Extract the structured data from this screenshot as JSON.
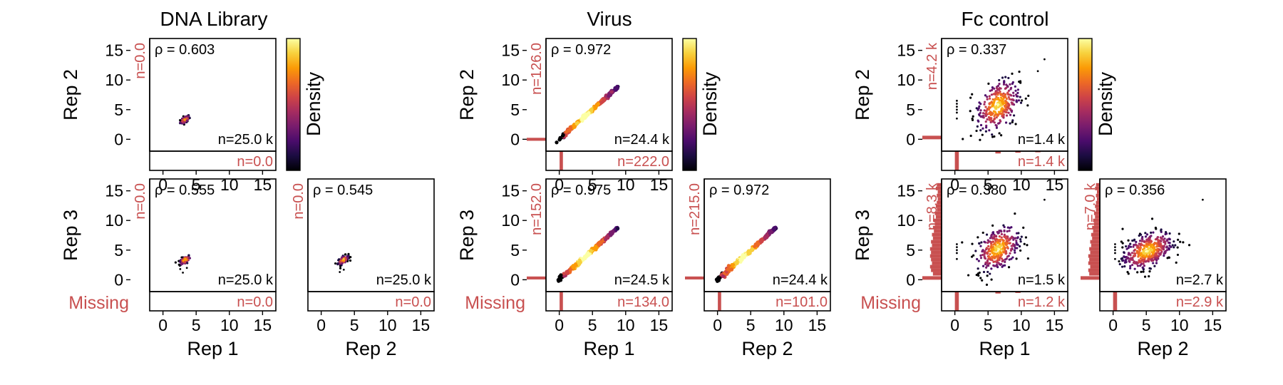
{
  "figure": {
    "colorbar_label": "Density",
    "colorbar_stops": [
      "#000004",
      "#1b0c41",
      "#4a0c6b",
      "#781c6d",
      "#a52c60",
      "#cf4446",
      "#ed6925",
      "#fb9b06",
      "#f7d13d",
      "#fcffa4"
    ],
    "missing_color": "#c85050",
    "missing_label": "Missing"
  },
  "chart_data": [
    {
      "type": "scatter",
      "group": "DNA Library",
      "title": "DNA Library",
      "xlabel": "",
      "ylabel": "Rep 2",
      "pair": [
        "Rep 1",
        "Rep 2"
      ],
      "xlim": [
        -2,
        17
      ],
      "ylim": [
        -2,
        17
      ],
      "xticks": [
        "0",
        "5",
        "10",
        "15"
      ],
      "yticks": [
        "0",
        "5",
        "10",
        "15"
      ],
      "rho_label": "ρ = 0.603",
      "rho": 0.603,
      "n_label": "n=25.0 k",
      "n_both": 25000,
      "miss_x_label": "n=0.0",
      "miss_x": 0,
      "miss_y_label": "n=0.0",
      "miss_y": 0,
      "cloud": {
        "cx": 3.3,
        "cy": 3.3,
        "sx": 0.35,
        "sy": 0.35,
        "corr": 0.6,
        "count": 90,
        "scatter_x": [],
        "scatter_y": []
      },
      "hist_x": [],
      "hist_y": []
    },
    {
      "type": "scatter",
      "group": "DNA Library",
      "xlabel": "Rep 1",
      "ylabel": "Rep 3",
      "pair": [
        "Rep 1",
        "Rep 3"
      ],
      "xlim": [
        -2,
        17
      ],
      "ylim": [
        -2,
        17
      ],
      "xticks": [
        "0",
        "5",
        "10",
        "15"
      ],
      "yticks": [
        "0",
        "5",
        "10",
        "15"
      ],
      "rho_label": "ρ = 0.555",
      "rho": 0.555,
      "n_label": "n=25.0 k",
      "n_both": 25000,
      "miss_x_label": "n=0.0",
      "miss_x": 0,
      "miss_y_label": "n=0.0",
      "miss_y": 0,
      "cloud": {
        "cx": 3.3,
        "cy": 3.3,
        "sx": 0.4,
        "sy": 0.4,
        "corr": 0.55,
        "count": 90,
        "scatter_x": [
          2.6,
          3.0,
          3.6
        ],
        "scatter_y": [
          1.8,
          1.2,
          2.0
        ]
      },
      "hist_x": [],
      "hist_y": []
    },
    {
      "type": "scatter",
      "group": "DNA Library",
      "xlabel": "Rep 2",
      "ylabel": "",
      "pair": [
        "Rep 2",
        "Rep 3"
      ],
      "xlim": [
        -2,
        17
      ],
      "ylim": [
        -2,
        17
      ],
      "xticks": [
        "0",
        "5",
        "10",
        "15"
      ],
      "yticks": [],
      "rho_label": "ρ = 0.545",
      "rho": 0.545,
      "n_label": "n=25.0 k",
      "n_both": 25000,
      "miss_x_label": "n=0.0",
      "miss_x": 0,
      "miss_y_label": "n=0.0",
      "miss_y": 0,
      "cloud": {
        "cx": 3.3,
        "cy": 3.3,
        "sx": 0.4,
        "sy": 0.4,
        "corr": 0.55,
        "count": 90,
        "scatter_x": [
          2.8,
          3.4
        ],
        "scatter_y": [
          1.3,
          1.7
        ]
      },
      "hist_x": [],
      "hist_y": []
    },
    {
      "type": "scatter",
      "group": "Virus",
      "title": "Virus",
      "xlabel": "",
      "ylabel": "Rep 2",
      "pair": [
        "Rep 1",
        "Rep 2"
      ],
      "xlim": [
        -2,
        17
      ],
      "ylim": [
        -2,
        17
      ],
      "xticks": [
        "0",
        "5",
        "10",
        "15"
      ],
      "yticks": [
        "0",
        "5",
        "10",
        "15"
      ],
      "rho_label": "ρ = 0.972",
      "rho": 0.972,
      "n_label": "n=24.4 k",
      "n_both": 24400,
      "miss_x_label": "n=222.0",
      "miss_x": 222,
      "miss_y_label": "n=126.0",
      "miss_y": 126,
      "cloud": {
        "diag": true,
        "x0": -0.2,
        "x1": 8.8,
        "count": 260,
        "scatter_x": [],
        "scatter_y": []
      },
      "hist_x": [
        {
          "x": 0.3,
          "w": 0.5,
          "h": 1.0
        }
      ],
      "hist_y": [
        {
          "y": 0.0,
          "w": 0.5,
          "h": 1.0
        }
      ]
    },
    {
      "type": "scatter",
      "group": "Virus",
      "xlabel": "Rep 1",
      "ylabel": "Rep 3",
      "pair": [
        "Rep 1",
        "Rep 3"
      ],
      "xlim": [
        -2,
        17
      ],
      "ylim": [
        -2,
        17
      ],
      "xticks": [
        "0",
        "5",
        "10",
        "15"
      ],
      "yticks": [
        "0",
        "5",
        "10",
        "15"
      ],
      "rho_label": "ρ = 0.975",
      "rho": 0.975,
      "n_label": "n=24.5 k",
      "n_both": 24500,
      "miss_x_label": "n=134.0",
      "miss_x": 134,
      "miss_y_label": "n=152.0",
      "miss_y": 152,
      "cloud": {
        "diag": true,
        "x0": -0.2,
        "x1": 8.8,
        "count": 260,
        "scatter_x": [],
        "scatter_y": []
      },
      "hist_x": [
        {
          "x": 0.3,
          "w": 0.5,
          "h": 1.0
        }
      ],
      "hist_y": [
        {
          "y": 0.3,
          "w": 0.5,
          "h": 1.0
        }
      ]
    },
    {
      "type": "scatter",
      "group": "Virus",
      "xlabel": "Rep 2",
      "ylabel": "",
      "pair": [
        "Rep 2",
        "Rep 3"
      ],
      "xlim": [
        -2,
        17
      ],
      "ylim": [
        -2,
        17
      ],
      "xticks": [
        "0",
        "5",
        "10",
        "15"
      ],
      "yticks": [],
      "rho_label": "ρ = 0.972",
      "rho": 0.972,
      "n_label": "n=24.4 k",
      "n_both": 24400,
      "miss_x_label": "n=101.0",
      "miss_x": 101,
      "miss_y_label": "n=215.0",
      "miss_y": 215,
      "cloud": {
        "diag": true,
        "x0": -0.2,
        "x1": 8.8,
        "count": 260,
        "scatter_x": [],
        "scatter_y": []
      },
      "hist_x": [
        {
          "x": 0.3,
          "w": 0.5,
          "h": 1.0
        }
      ],
      "hist_y": [
        {
          "y": 0.3,
          "w": 0.5,
          "h": 1.0
        }
      ]
    },
    {
      "type": "scatter",
      "group": "Fc control",
      "title": "Fc control",
      "xlabel": "",
      "ylabel": "Rep 2",
      "pair": [
        "Rep 1",
        "Rep 2"
      ],
      "xlim": [
        -2,
        17
      ],
      "ylim": [
        -2,
        17
      ],
      "xticks": [
        "0",
        "5",
        "10",
        "15"
      ],
      "yticks": [
        "0",
        "5",
        "10",
        "15"
      ],
      "rho_label": "ρ = 0.337",
      "rho": 0.337,
      "n_label": "n=1.4 k",
      "n_both": 1400,
      "miss_x_label": "n=1.4 k",
      "miss_x": 1400,
      "miss_y_label": "n=4.2 k",
      "miss_y": 4200,
      "cloud": {
        "cx": 6.5,
        "cy": 5.7,
        "sx": 1.6,
        "sy": 2.2,
        "corr": 0.35,
        "count": 320,
        "scatter_x": [
          0.3,
          0.3,
          0.3,
          0.3,
          0.3,
          0.3,
          13.5,
          12.5
        ],
        "scatter_y": [
          3.5,
          4.5,
          5.0,
          5.5,
          6.0,
          6.5,
          13.5,
          11.5
        ]
      },
      "hist_x": [
        {
          "x": 0.3,
          "w": 0.6,
          "h": 1.0
        },
        {
          "x": 6.5,
          "w": 0.8,
          "h": 0.12
        },
        {
          "x": 9.5,
          "w": 0.8,
          "h": 0.08
        },
        {
          "x": 12.5,
          "w": 0.8,
          "h": 0.06
        }
      ],
      "hist_y": [
        {
          "y": 0.3,
          "w": 0.6,
          "h": 1.0
        }
      ]
    },
    {
      "type": "scatter",
      "group": "Fc control",
      "xlabel": "Rep 1",
      "ylabel": "Rep 3",
      "pair": [
        "Rep 1",
        "Rep 3"
      ],
      "xlim": [
        -2,
        17
      ],
      "ylim": [
        -2,
        17
      ],
      "xticks": [
        "0",
        "5",
        "10",
        "15"
      ],
      "yticks": [
        "0",
        "5",
        "10",
        "15"
      ],
      "rho_label": "ρ = 0.380",
      "rho": 0.38,
      "n_label": "n=1.5 k",
      "n_both": 1500,
      "miss_x_label": "n=1.2 k",
      "miss_x": 1200,
      "miss_y_label": "n=8.3 k",
      "miss_y": 8300,
      "cloud": {
        "cx": 6.5,
        "cy": 5.2,
        "sx": 1.6,
        "sy": 1.9,
        "corr": 0.4,
        "count": 330,
        "scatter_x": [
          0.3,
          0.3,
          0.3,
          0.3,
          0.3,
          13.5
        ],
        "scatter_y": [
          3.5,
          4.5,
          5.0,
          5.5,
          6.0,
          13.5
        ]
      },
      "hist_x": [
        {
          "x": 0.3,
          "w": 0.6,
          "h": 1.0
        },
        {
          "x": 6.5,
          "w": 0.8,
          "h": 0.1
        },
        {
          "x": 9.5,
          "w": 0.8,
          "h": 0.07
        }
      ],
      "hist_y": [
        {
          "y": 0.3,
          "w": 0.6,
          "h": 1.0
        },
        {
          "y": 1.0,
          "w": 0.6,
          "h": 0.45
        },
        {
          "y": 1.6,
          "w": 0.6,
          "h": 0.55
        },
        {
          "y": 2.2,
          "w": 0.6,
          "h": 0.6
        },
        {
          "y": 2.8,
          "w": 0.6,
          "h": 0.5
        },
        {
          "y": 3.4,
          "w": 0.6,
          "h": 0.55
        },
        {
          "y": 4.0,
          "w": 0.6,
          "h": 0.6
        },
        {
          "y": 4.6,
          "w": 0.6,
          "h": 0.55
        },
        {
          "y": 5.2,
          "w": 0.6,
          "h": 0.6
        },
        {
          "y": 5.8,
          "w": 0.6,
          "h": 0.5
        },
        {
          "y": 6.4,
          "w": 0.6,
          "h": 0.55
        },
        {
          "y": 7.0,
          "w": 0.6,
          "h": 0.45
        },
        {
          "y": 7.6,
          "w": 0.6,
          "h": 0.5
        },
        {
          "y": 8.2,
          "w": 0.6,
          "h": 0.4
        },
        {
          "y": 8.8,
          "w": 0.6,
          "h": 0.45
        },
        {
          "y": 9.4,
          "w": 0.6,
          "h": 0.35
        },
        {
          "y": 10.0,
          "w": 0.6,
          "h": 0.4
        },
        {
          "y": 10.6,
          "w": 0.6,
          "h": 0.3
        },
        {
          "y": 11.2,
          "w": 0.6,
          "h": 0.35
        },
        {
          "y": 11.8,
          "w": 0.6,
          "h": 0.25
        },
        {
          "y": 12.4,
          "w": 0.6,
          "h": 0.3
        },
        {
          "y": 13.0,
          "w": 0.6,
          "h": 0.25
        },
        {
          "y": 13.6,
          "w": 0.6,
          "h": 0.2
        },
        {
          "y": 14.2,
          "w": 0.6,
          "h": 0.25
        },
        {
          "y": 14.8,
          "w": 0.6,
          "h": 0.2
        },
        {
          "y": 15.4,
          "w": 0.6,
          "h": 0.3
        },
        {
          "y": 16.0,
          "w": 0.6,
          "h": 0.25
        }
      ]
    },
    {
      "type": "scatter",
      "group": "Fc control",
      "xlabel": "Rep 2",
      "ylabel": "",
      "pair": [
        "Rep 2",
        "Rep 3"
      ],
      "xlim": [
        -2,
        17
      ],
      "ylim": [
        -2,
        17
      ],
      "xticks": [
        "0",
        "5",
        "10",
        "15"
      ],
      "yticks": [],
      "rho_label": "ρ = 0.356",
      "rho": 0.356,
      "n_label": "n=2.7 k",
      "n_both": 2700,
      "miss_x_label": "n=2.9 k",
      "miss_x": 2900,
      "miss_y_label": "n=7.0 k",
      "miss_y": 7000,
      "cloud": {
        "cx": 5.2,
        "cy": 4.9,
        "sx": 1.9,
        "sy": 1.6,
        "corr": 0.45,
        "count": 420,
        "scatter_x": [
          0.3,
          0.3,
          0.3,
          0.3,
          0.3,
          13.5
        ],
        "scatter_y": [
          3.5,
          4.5,
          5.0,
          5.5,
          6.0,
          13.5
        ]
      },
      "hist_x": [
        {
          "x": 0.3,
          "w": 0.6,
          "h": 1.0
        }
      ],
      "hist_y": [
        {
          "y": 0.3,
          "w": 0.6,
          "h": 1.0
        },
        {
          "y": 1.0,
          "w": 0.6,
          "h": 0.55
        },
        {
          "y": 1.6,
          "w": 0.6,
          "h": 0.6
        },
        {
          "y": 2.2,
          "w": 0.6,
          "h": 0.5
        },
        {
          "y": 2.8,
          "w": 0.6,
          "h": 0.6
        },
        {
          "y": 3.4,
          "w": 0.6,
          "h": 0.55
        },
        {
          "y": 4.0,
          "w": 0.6,
          "h": 0.6
        },
        {
          "y": 4.6,
          "w": 0.6,
          "h": 0.5
        },
        {
          "y": 5.2,
          "w": 0.6,
          "h": 0.55
        },
        {
          "y": 5.8,
          "w": 0.6,
          "h": 0.45
        },
        {
          "y": 6.4,
          "w": 0.6,
          "h": 0.5
        },
        {
          "y": 7.0,
          "w": 0.6,
          "h": 0.4
        },
        {
          "y": 7.6,
          "w": 0.6,
          "h": 0.45
        },
        {
          "y": 8.2,
          "w": 0.6,
          "h": 0.35
        },
        {
          "y": 8.8,
          "w": 0.6,
          "h": 0.4
        },
        {
          "y": 9.4,
          "w": 0.6,
          "h": 0.3
        },
        {
          "y": 10.0,
          "w": 0.6,
          "h": 0.35
        },
        {
          "y": 10.6,
          "w": 0.6,
          "h": 0.25
        },
        {
          "y": 11.2,
          "w": 0.6,
          "h": 0.3
        },
        {
          "y": 11.8,
          "w": 0.6,
          "h": 0.2
        },
        {
          "y": 12.4,
          "w": 0.6,
          "h": 0.25
        },
        {
          "y": 13.0,
          "w": 0.6,
          "h": 0.2
        },
        {
          "y": 13.6,
          "w": 0.6,
          "h": 0.15
        },
        {
          "y": 14.2,
          "w": 0.6,
          "h": 0.2
        },
        {
          "y": 14.8,
          "w": 0.6,
          "h": 0.15
        },
        {
          "y": 15.4,
          "w": 0.6,
          "h": 0.25
        },
        {
          "y": 16.0,
          "w": 0.6,
          "h": 0.2
        }
      ]
    }
  ]
}
